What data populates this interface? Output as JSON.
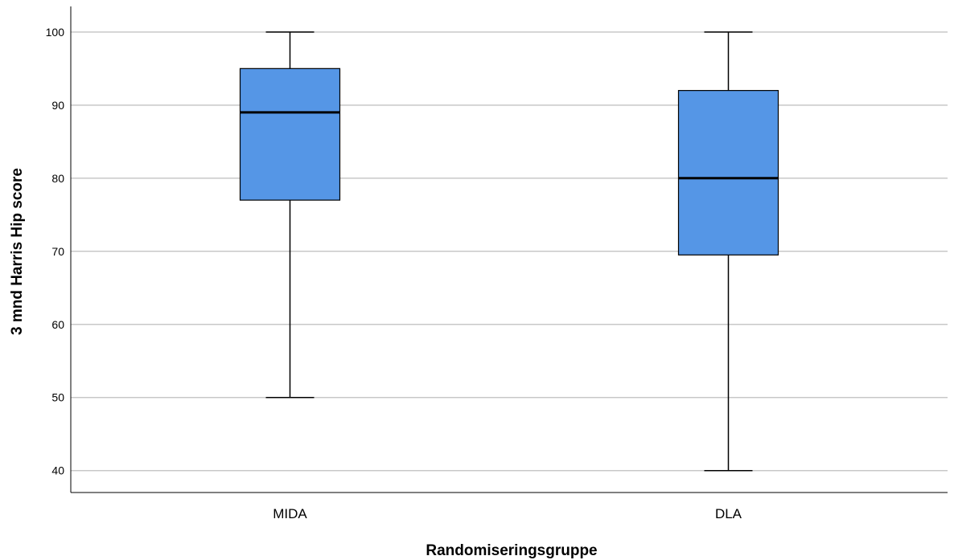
{
  "chart_data": {
    "type": "boxplot",
    "xlabel": "Randomiseringsgruppe",
    "ylabel": "3 mnd Harris Hip score",
    "ylim": [
      37,
      103.5
    ],
    "yticks": [
      40,
      50,
      60,
      70,
      80,
      90,
      100
    ],
    "grid": true,
    "categories": [
      "MIDA",
      "DLA"
    ],
    "boxes": [
      {
        "category": "MIDA",
        "min": 50,
        "q1": 77,
        "median": 89,
        "q3": 95,
        "max": 100
      },
      {
        "category": "DLA",
        "min": 40,
        "q1": 69.5,
        "median": 80,
        "q3": 92,
        "max": 100
      }
    ],
    "colors": {
      "box_fill": "#5596E6",
      "box_stroke": "#000000",
      "grid": "#C8C8C8",
      "axis": "#000000"
    }
  }
}
